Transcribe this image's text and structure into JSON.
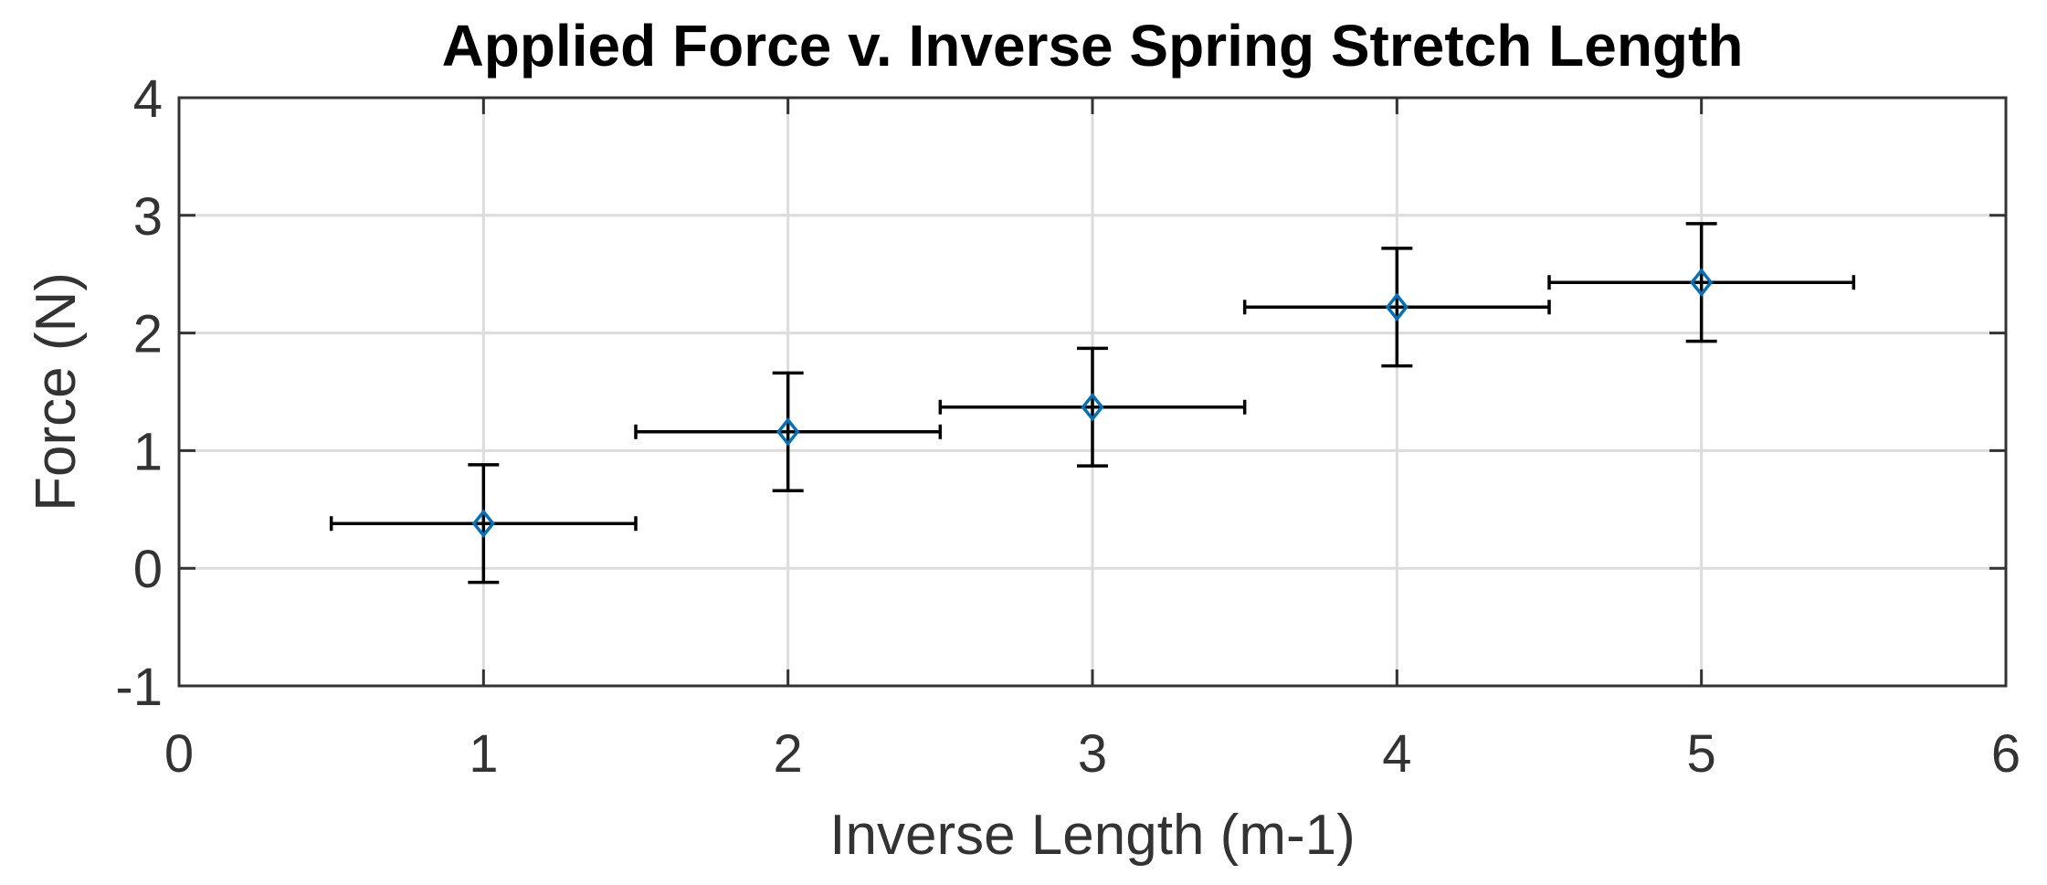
{
  "chart_data": {
    "type": "scatter",
    "title": "Applied Force v. Inverse Spring Stretch Length",
    "xlabel": "Inverse Length (m-1)",
    "ylabel": "Force (N)",
    "xlim": [
      0,
      6
    ],
    "ylim": [
      -1,
      4
    ],
    "xticks": [
      0,
      1,
      2,
      3,
      4,
      5,
      6
    ],
    "yticks": [
      -1,
      0,
      1,
      2,
      3,
      4
    ],
    "xtick_labels": [
      "0",
      "1",
      "2",
      "3",
      "4",
      "5",
      "6"
    ],
    "ytick_labels": [
      "-1",
      "0",
      "1",
      "2",
      "3",
      "4"
    ],
    "grid": true,
    "marker": "diamond",
    "marker_color": "#0072BD",
    "errorbar_color": "#000000",
    "series": [
      {
        "x": [
          1,
          2,
          3,
          4,
          5
        ],
        "y": [
          0.38,
          1.16,
          1.37,
          2.22,
          2.43
        ],
        "x_error": [
          0.5,
          0.5,
          0.5,
          0.5,
          0.5
        ],
        "y_error": [
          0.5,
          0.5,
          0.5,
          0.5,
          0.5
        ]
      }
    ]
  }
}
